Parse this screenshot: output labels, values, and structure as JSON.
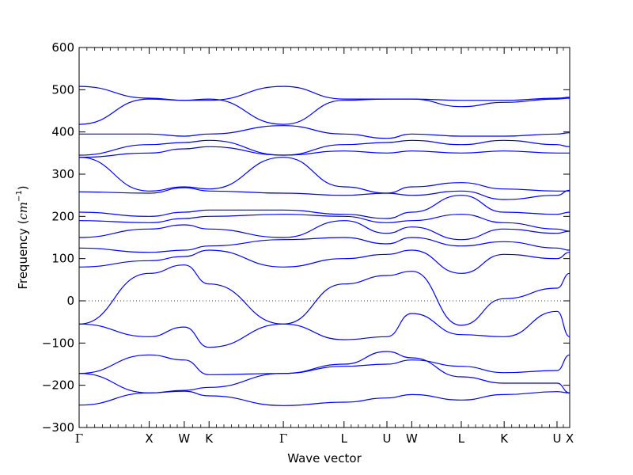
{
  "chart_data": {
    "type": "line",
    "title": "",
    "xlabel": "Wave vector",
    "ylabel": {
      "prefix": "Frequency (",
      "unit": "cm",
      "exponent": "−1",
      "suffix": ")"
    },
    "ylim": [
      -300,
      600
    ],
    "yticks": [
      -300,
      -200,
      -100,
      0,
      100,
      200,
      300,
      400,
      500,
      600
    ],
    "x_kpoints": [
      {
        "label": "Γ",
        "pos": 0.0
      },
      {
        "label": "X",
        "pos": 1.0
      },
      {
        "label": "W",
        "pos": 1.5
      },
      {
        "label": "K",
        "pos": 1.854
      },
      {
        "label": "Γ",
        "pos": 2.914
      },
      {
        "label": "L",
        "pos": 3.78
      },
      {
        "label": "U",
        "pos": 4.392
      },
      {
        "label": "W",
        "pos": 4.746
      },
      {
        "label": "L",
        "pos": 5.453
      },
      {
        "label": "K",
        "pos": 6.065
      },
      {
        "label": "U",
        "pos": 6.819
      },
      {
        "label": "X",
        "pos": 7.0
      }
    ],
    "xlim": [
      0,
      7.0
    ],
    "zero_line": {
      "y": 0,
      "style": "dotted"
    },
    "line_color": "#0000ff",
    "series": [
      {
        "x": [
          0,
          1,
          1.5,
          1.854,
          2.914,
          3.78,
          4.392,
          4.746,
          5.453,
          6.065,
          6.819,
          7.0
        ],
        "y": [
          -247,
          -218,
          -214,
          -225,
          -248,
          -240,
          -230,
          -222,
          -235,
          -222,
          -215,
          -218
        ]
      },
      {
        "x": [
          0,
          1,
          1.5,
          1.854,
          2.914,
          3.78,
          4.392,
          4.746,
          5.453,
          6.065,
          6.819,
          7.0
        ],
        "y": [
          -172,
          -218,
          -212,
          -205,
          -172,
          -150,
          -120,
          -135,
          -180,
          -195,
          -195,
          -218
        ]
      },
      {
        "x": [
          0,
          1,
          1.5,
          1.854,
          2.914,
          3.78,
          4.392,
          4.746,
          5.453,
          6.065,
          6.819,
          7.0
        ],
        "y": [
          -172,
          -128,
          -140,
          -175,
          -172,
          -155,
          -150,
          -140,
          -155,
          -170,
          -165,
          -128
        ]
      },
      {
        "x": [
          0,
          1,
          1.5,
          1.854,
          2.914,
          3.78,
          4.392,
          4.746,
          5.453,
          6.065,
          6.819,
          7.0
        ],
        "y": [
          -55,
          -85,
          -62,
          -110,
          -55,
          -92,
          -85,
          -30,
          -80,
          -85,
          -25,
          -85
        ]
      },
      {
        "x": [
          0,
          1,
          1.5,
          1.854,
          2.914,
          3.78,
          4.392,
          4.746,
          5.453,
          6.065,
          6.819,
          7.0
        ],
        "y": [
          -55,
          65,
          85,
          40,
          -55,
          40,
          60,
          70,
          -58,
          5,
          30,
          65
        ]
      },
      {
        "x": [
          0,
          1,
          1.5,
          1.854,
          2.914,
          3.78,
          4.392,
          4.746,
          5.453,
          6.065,
          6.819,
          7.0
        ],
        "y": [
          80,
          95,
          105,
          120,
          80,
          100,
          110,
          120,
          65,
          110,
          100,
          115
        ]
      },
      {
        "x": [
          0,
          1,
          1.5,
          1.854,
          2.914,
          3.78,
          4.392,
          4.746,
          5.453,
          6.065,
          6.819,
          7.0
        ],
        "y": [
          125,
          115,
          120,
          130,
          145,
          150,
          135,
          150,
          130,
          140,
          125,
          120
        ]
      },
      {
        "x": [
          0,
          1,
          1.5,
          1.854,
          2.914,
          3.78,
          4.392,
          4.746,
          5.453,
          6.065,
          6.819,
          7.0
        ],
        "y": [
          150,
          170,
          180,
          170,
          150,
          190,
          160,
          175,
          145,
          170,
          160,
          165
        ]
      },
      {
        "x": [
          0,
          1,
          1.5,
          1.854,
          2.914,
          3.78,
          4.392,
          4.746,
          5.453,
          6.065,
          6.819,
          7.0
        ],
        "y": [
          190,
          185,
          195,
          200,
          205,
          200,
          185,
          190,
          205,
          185,
          170,
          165
        ]
      },
      {
        "x": [
          0,
          1,
          1.5,
          1.854,
          2.914,
          3.78,
          4.392,
          4.746,
          5.453,
          6.065,
          6.819,
          7.0
        ],
        "y": [
          210,
          200,
          210,
          215,
          215,
          205,
          195,
          210,
          250,
          210,
          205,
          210
        ]
      },
      {
        "x": [
          0,
          1,
          1.5,
          1.854,
          2.914,
          3.78,
          4.392,
          4.746,
          5.453,
          6.065,
          6.819,
          7.0
        ],
        "y": [
          258,
          255,
          268,
          260,
          255,
          250,
          255,
          270,
          280,
          265,
          260,
          260
        ]
      },
      {
        "x": [
          0,
          1,
          1.5,
          1.854,
          2.914,
          3.78,
          4.392,
          4.746,
          5.453,
          6.065,
          6.819,
          7.0
        ],
        "y": [
          340,
          260,
          270,
          265,
          340,
          270,
          255,
          250,
          260,
          240,
          250,
          262
        ]
      },
      {
        "x": [
          0,
          1,
          1.5,
          1.854,
          2.914,
          3.78,
          4.392,
          4.746,
          5.453,
          6.065,
          6.819,
          7.0
        ],
        "y": [
          340,
          350,
          360,
          365,
          345,
          355,
          350,
          355,
          350,
          355,
          350,
          350
        ]
      },
      {
        "x": [
          0,
          1,
          1.5,
          1.854,
          2.914,
          3.78,
          4.392,
          4.746,
          5.453,
          6.065,
          6.819,
          7.0
        ],
        "y": [
          345,
          370,
          375,
          380,
          345,
          370,
          375,
          380,
          370,
          380,
          370,
          365
        ]
      },
      {
        "x": [
          0,
          1,
          1.5,
          1.854,
          2.914,
          3.78,
          4.392,
          4.746,
          5.453,
          6.065,
          6.819,
          7.0
        ],
        "y": [
          395,
          395,
          390,
          395,
          415,
          395,
          385,
          395,
          390,
          390,
          395,
          398
        ]
      },
      {
        "x": [
          0,
          1,
          1.5,
          1.854,
          2.914,
          3.78,
          4.392,
          4.746,
          5.453,
          6.065,
          6.819,
          7.0
        ],
        "y": [
          418,
          478,
          475,
          478,
          418,
          475,
          478,
          478,
          460,
          470,
          478,
          480
        ]
      },
      {
        "x": [
          0,
          1,
          1.5,
          1.854,
          2.914,
          3.78,
          4.392,
          4.746,
          5.453,
          6.065,
          6.819,
          7.0
        ],
        "y": [
          508,
          480,
          475,
          475,
          508,
          478,
          478,
          478,
          475,
          475,
          480,
          482
        ]
      }
    ]
  }
}
